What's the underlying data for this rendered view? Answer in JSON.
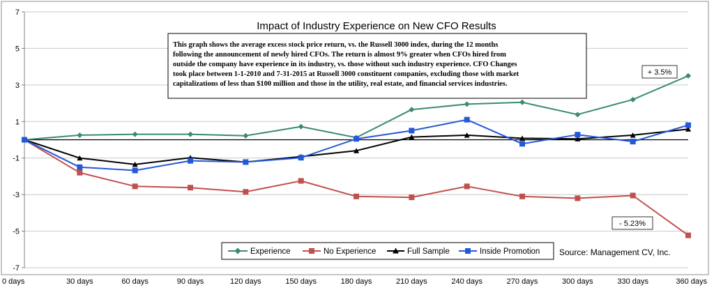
{
  "chart_data": {
    "type": "line",
    "title": "Impact of Industry Experience on New CFO Results",
    "xlabel": "",
    "ylabel": "",
    "categories": [
      "0 days",
      "30 days",
      "60 days",
      "90 days",
      "120 days",
      "150 days",
      "180 days",
      "210 days",
      "240 days",
      "270 days",
      "300 days",
      "330 days",
      "360 days"
    ],
    "ylim": [
      -7,
      7
    ],
    "yticks": [
      "7",
      "5",
      "3",
      "1",
      "-1",
      "-3",
      "-5",
      "-7"
    ],
    "ytick_values": [
      7,
      5,
      3,
      1,
      -1,
      -3,
      -5,
      -7
    ],
    "grid": true,
    "series": [
      {
        "name": "Experience",
        "color": "#3a8a72",
        "marker": "diamond",
        "values": [
          0,
          0.25,
          0.3,
          0.3,
          0.22,
          0.72,
          0.12,
          1.65,
          1.95,
          2.05,
          1.38,
          2.2,
          3.5
        ]
      },
      {
        "name": "No Experience",
        "color": "#c0504d",
        "marker": "square",
        "values": [
          0,
          -1.8,
          -2.55,
          -2.62,
          -2.85,
          -2.25,
          -3.1,
          -3.15,
          -2.55,
          -3.1,
          -3.2,
          -3.05,
          -5.23
        ]
      },
      {
        "name": "Full Sample",
        "color": "#000000",
        "marker": "triangle",
        "values": [
          0,
          -1.0,
          -1.35,
          -0.98,
          -1.22,
          -0.92,
          -0.6,
          0.15,
          0.25,
          0.08,
          0.05,
          0.25,
          0.58
        ]
      },
      {
        "name": "Inside Promotion",
        "color": "#2457d9",
        "marker": "square",
        "values": [
          0,
          -1.5,
          -1.68,
          -1.15,
          -1.22,
          -0.98,
          0.05,
          0.5,
          1.1,
          -0.22,
          0.28,
          -0.1,
          0.8
        ]
      }
    ],
    "annotation_text": "This graph shows the average excess stock price return, vs. the Russell 3000 index, during the 12 months following the announcement of newly hired CFOs.   The return is almost 9% greater when CFOs hired from outside the company have experience in its industry, vs. those without such industry experience.  CFO Changes took place between 1-1-2010 and 7-31-2015 at Russell 3000 constituent companies, excluding those with market capitalizations of less than $100 million and those in the utility, real estate, and financial services industries.",
    "annotation_lines": [
      "This graph shows the average excess stock price return, vs. the Russell 3000 index, during the 12 months",
      "following the announcement of newly hired CFOs.   The return is almost 9% greater when CFOs hired from",
      "outside the company have experience in its industry, vs. those without such industry experience.  CFO Changes",
      "took place between 1-1-2010 and 7-31-2015 at Russell 3000 constituent companies, excluding those with market",
      "capitalizations of less than $100 million and those in the utility, real estate, and financial services industries."
    ],
    "callouts": {
      "experience_end": "+ 3.5%",
      "no_experience_end": "- 5.23%"
    },
    "source": "Source:  Management CV, Inc.",
    "legend_position": "bottom-center"
  }
}
